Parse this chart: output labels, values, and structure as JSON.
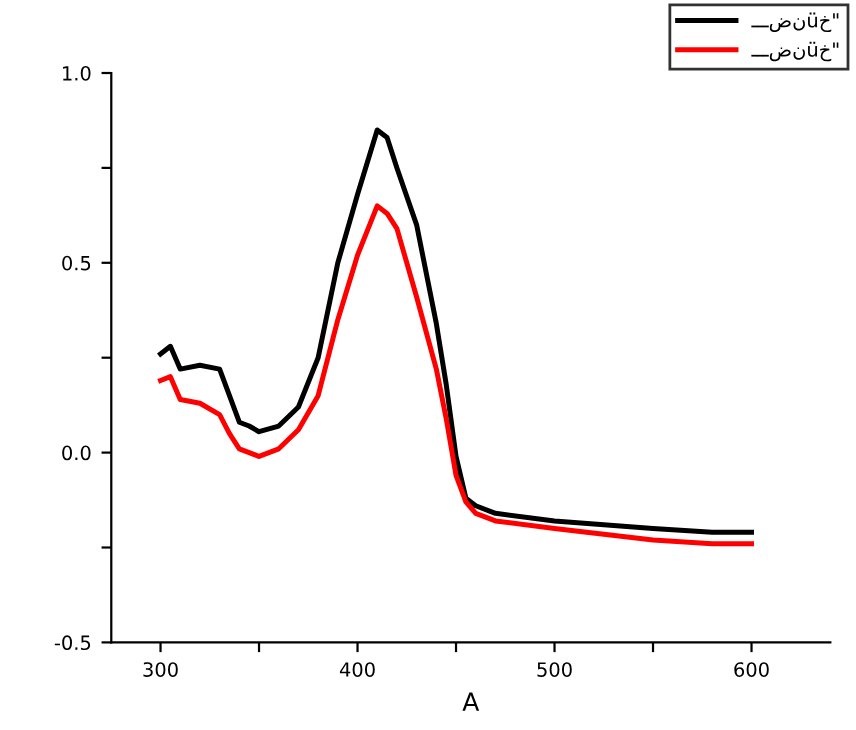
{
  "chart_data": {
    "type": "line",
    "xlabel": "A",
    "x": [
      300,
      305,
      310,
      320,
      330,
      335,
      340,
      345,
      350,
      360,
      370,
      380,
      390,
      400,
      410,
      415,
      420,
      430,
      440,
      445,
      450,
      455,
      460,
      470,
      500,
      550,
      580,
      600
    ],
    "series": [
      {
        "name": "ـــضنüخ\"",
        "color": "#000000",
        "values": [
          0.26,
          0.28,
          0.22,
          0.23,
          0.22,
          0.15,
          0.08,
          0.07,
          0.055,
          0.07,
          0.12,
          0.25,
          0.5,
          0.68,
          0.85,
          0.83,
          0.75,
          0.6,
          0.34,
          0.18,
          -0.01,
          -0.12,
          -0.14,
          -0.16,
          -0.18,
          -0.2,
          -0.21,
          -0.21
        ]
      },
      {
        "name": "ـــضنüخ\"",
        "color": "#ff0000",
        "values": [
          0.19,
          0.2,
          0.14,
          0.13,
          0.1,
          0.05,
          0.01,
          0.0,
          -0.01,
          0.01,
          0.06,
          0.15,
          0.35,
          0.52,
          0.65,
          0.63,
          0.59,
          0.41,
          0.22,
          0.09,
          -0.06,
          -0.13,
          -0.16,
          -0.18,
          -0.2,
          -0.23,
          -0.24,
          -0.24
        ]
      }
    ],
    "xlim": [
      275,
      640
    ],
    "xticks": [
      300,
      {
        "value": 350,
        "label": null
      },
      400,
      {
        "value": 450,
        "label": null
      },
      500,
      {
        "value": 550,
        "label": null
      },
      600
    ],
    "ylim": [
      -0.5,
      1.0
    ],
    "yticks": [
      -0.5,
      {
        "value": -0.25,
        "label": null
      },
      {
        "value": 0,
        "label": "0.0"
      },
      {
        "value": 0.25,
        "label": null
      },
      0.5,
      {
        "value": 0.75,
        "label": null
      },
      {
        "value": 1,
        "label": "1.0"
      }
    ],
    "legend": "top right",
    "grid": false,
    "marker": "none",
    "line_style": "solid"
  }
}
